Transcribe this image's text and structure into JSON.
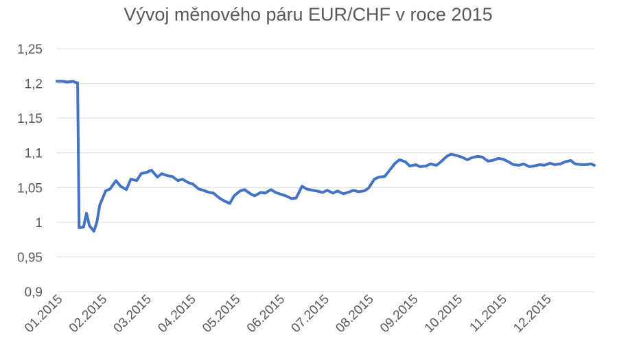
{
  "chart_data": {
    "type": "line",
    "title": "Vývoj měnového páru EUR/CHF v roce 2015",
    "xlabel": "",
    "ylabel": "",
    "ylim": [
      0.9,
      1.25
    ],
    "yticks": [
      "0,9",
      "0,95",
      "1",
      "1,05",
      "1,1",
      "1,15",
      "1,2",
      "1,25"
    ],
    "ytick_values": [
      0.9,
      0.95,
      1.0,
      1.05,
      1.1,
      1.15,
      1.2,
      1.25
    ],
    "xticks": [
      "01.2015",
      "02.2015",
      "03.2015",
      "04.2015",
      "05.2015",
      "06.2015",
      "07.2015",
      "08.2015",
      "09.2015",
      "10.2015",
      "11.2015",
      "12.2015"
    ],
    "grid": true,
    "legend": "none",
    "line_color": "#4472c4",
    "grid_color": "#d9d9d9",
    "series": [
      {
        "x": [
          "2015-01-01",
          "2015-01-05",
          "2015-01-08",
          "2015-01-12",
          "2015-01-14",
          "2015-01-15",
          "2015-01-16",
          "2015-01-19",
          "2015-01-21",
          "2015-01-23",
          "2015-01-26",
          "2015-01-28",
          "2015-01-30",
          "2015-02-03",
          "2015-02-06",
          "2015-02-10",
          "2015-02-13",
          "2015-02-17",
          "2015-02-20",
          "2015-02-24",
          "2015-02-27",
          "2015-03-03",
          "2015-03-06",
          "2015-03-10",
          "2015-03-13",
          "2015-03-17",
          "2015-03-20",
          "2015-03-24",
          "2015-03-27",
          "2015-03-31",
          "2015-04-03",
          "2015-04-07",
          "2015-04-10",
          "2015-04-14",
          "2015-04-17",
          "2015-04-21",
          "2015-04-24",
          "2015-04-28",
          "2015-05-01",
          "2015-05-05",
          "2015-05-08",
          "2015-05-12",
          "2015-05-15",
          "2015-05-19",
          "2015-05-22",
          "2015-05-26",
          "2015-05-29",
          "2015-06-02",
          "2015-06-05",
          "2015-06-09",
          "2015-06-12",
          "2015-06-16",
          "2015-06-19",
          "2015-06-23",
          "2015-06-26",
          "2015-06-30",
          "2015-07-03",
          "2015-07-07",
          "2015-07-10",
          "2015-07-14",
          "2015-07-17",
          "2015-07-21",
          "2015-07-24",
          "2015-07-28",
          "2015-07-31",
          "2015-08-04",
          "2015-08-07",
          "2015-08-11",
          "2015-08-14",
          "2015-08-18",
          "2015-08-21",
          "2015-08-25",
          "2015-08-28",
          "2015-09-01",
          "2015-09-04",
          "2015-09-08",
          "2015-09-11",
          "2015-09-15",
          "2015-09-18",
          "2015-09-22",
          "2015-09-25",
          "2015-09-29",
          "2015-10-02",
          "2015-10-06",
          "2015-10-09",
          "2015-10-13",
          "2015-10-16",
          "2015-10-20",
          "2015-10-23",
          "2015-10-27",
          "2015-10-30",
          "2015-11-03",
          "2015-11-06",
          "2015-11-10",
          "2015-11-13",
          "2015-11-17",
          "2015-11-20",
          "2015-11-24",
          "2015-11-27",
          "2015-12-01",
          "2015-12-04",
          "2015-12-08",
          "2015-12-11",
          "2015-12-15",
          "2015-12-18",
          "2015-12-22",
          "2015-12-25",
          "2015-12-29",
          "2015-12-31"
        ],
        "values": [
          1.203,
          1.203,
          1.202,
          1.203,
          1.201,
          1.201,
          0.992,
          0.993,
          1.013,
          0.995,
          0.987,
          1.0,
          1.025,
          1.045,
          1.048,
          1.06,
          1.052,
          1.047,
          1.062,
          1.06,
          1.07,
          1.072,
          1.075,
          1.065,
          1.07,
          1.067,
          1.066,
          1.06,
          1.062,
          1.057,
          1.055,
          1.048,
          1.046,
          1.043,
          1.042,
          1.035,
          1.031,
          1.027,
          1.038,
          1.045,
          1.047,
          1.041,
          1.038,
          1.043,
          1.042,
          1.047,
          1.043,
          1.04,
          1.038,
          1.034,
          1.035,
          1.052,
          1.048,
          1.046,
          1.045,
          1.043,
          1.046,
          1.042,
          1.045,
          1.041,
          1.043,
          1.046,
          1.044,
          1.045,
          1.049,
          1.062,
          1.065,
          1.066,
          1.074,
          1.085,
          1.09,
          1.087,
          1.081,
          1.083,
          1.08,
          1.081,
          1.084,
          1.082,
          1.087,
          1.095,
          1.098,
          1.096,
          1.094,
          1.09,
          1.093,
          1.095,
          1.094,
          1.088,
          1.089,
          1.092,
          1.091,
          1.087,
          1.083,
          1.082,
          1.084,
          1.08,
          1.081,
          1.083,
          1.082,
          1.085,
          1.083,
          1.084,
          1.087,
          1.089,
          1.084,
          1.083,
          1.083,
          1.084,
          1.082
        ]
      }
    ]
  }
}
